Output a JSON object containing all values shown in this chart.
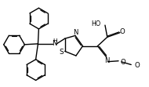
{
  "bg_color": "#ffffff",
  "line_color": "#000000",
  "figsize": [
    1.9,
    1.11
  ],
  "dpi": 100,
  "xlim": [
    0,
    10
  ],
  "ylim": [
    0,
    5.84
  ],
  "lw": 1.0,
  "fs": 5.8
}
